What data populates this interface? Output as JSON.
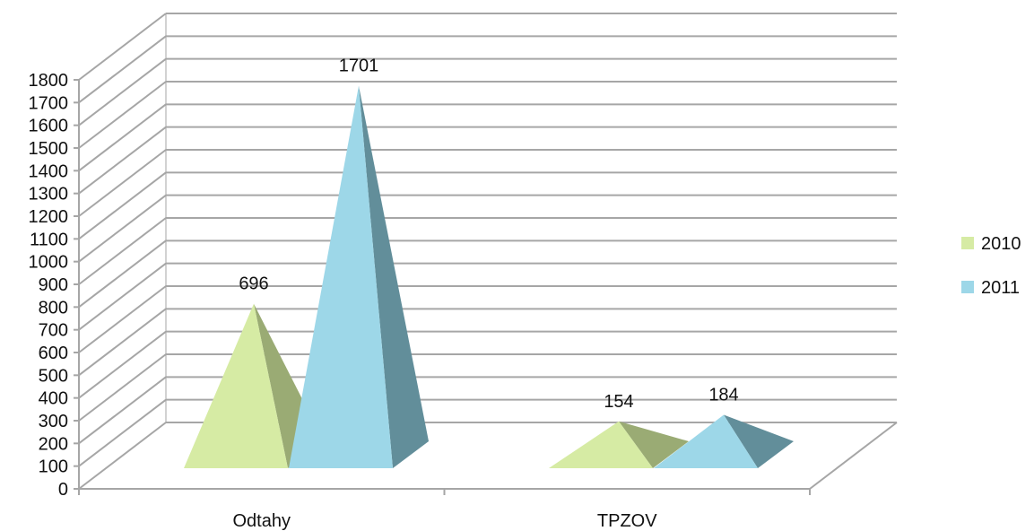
{
  "chart_data": {
    "type": "bar",
    "style": "3d-pyramid",
    "categories": [
      "Odtahy",
      "TPZOV"
    ],
    "series": [
      {
        "name": "2010",
        "values": [
          696,
          154
        ],
        "color": "#d6eba4",
        "shade": "#9aab74"
      },
      {
        "name": "2011",
        "values": [
          1701,
          184
        ],
        "color": "#9dd7e8",
        "shade": "#628e9a"
      }
    ],
    "data_labels": [
      "696",
      "1701",
      "154",
      "184"
    ],
    "ylim": [
      0,
      1800
    ],
    "y_ticks": [
      "0",
      "100",
      "200",
      "300",
      "400",
      "500",
      "600",
      "700",
      "800",
      "900",
      "1000",
      "1100",
      "1200",
      "1300",
      "1400",
      "1500",
      "1600",
      "1700",
      "1800"
    ],
    "grid": true,
    "legend": {
      "position": "right",
      "entries": [
        "2010",
        "2011"
      ]
    }
  }
}
